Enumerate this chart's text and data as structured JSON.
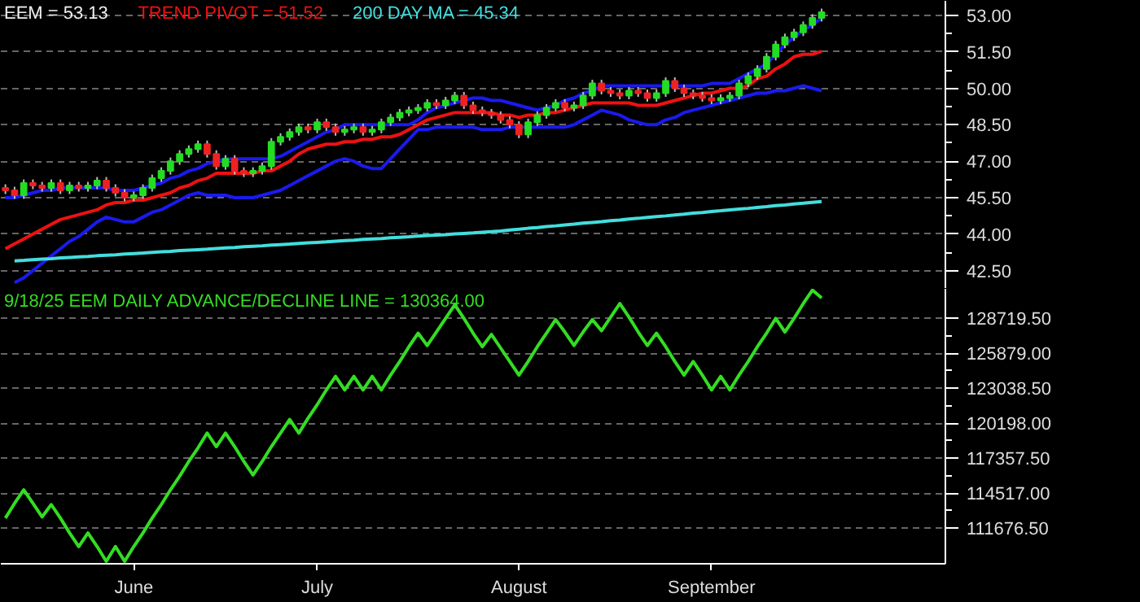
{
  "chart_data": [
    {
      "type": "candlestick",
      "title": "EEM = 53.13",
      "ohlc": [
        [
          45.9,
          46.05,
          45.65,
          45.8
        ],
        [
          45.8,
          45.95,
          45.45,
          45.6
        ],
        [
          45.6,
          46.25,
          45.45,
          46.1
        ],
        [
          46.1,
          46.25,
          45.85,
          46.0
        ],
        [
          46.0,
          46.15,
          45.75,
          45.9
        ],
        [
          45.9,
          46.25,
          45.75,
          46.1
        ],
        [
          46.1,
          46.25,
          45.65,
          45.8
        ],
        [
          45.8,
          46.15,
          45.65,
          46.0
        ],
        [
          46.0,
          46.15,
          45.75,
          45.9
        ],
        [
          45.9,
          46.15,
          45.75,
          46.0
        ],
        [
          46.0,
          46.35,
          45.85,
          46.2
        ],
        [
          46.2,
          46.35,
          45.75,
          45.9
        ],
        [
          45.9,
          46.05,
          45.55,
          45.7
        ],
        [
          45.7,
          45.85,
          45.35,
          45.5
        ],
        [
          45.5,
          45.75,
          45.35,
          45.6
        ],
        [
          45.6,
          46.05,
          45.45,
          45.9
        ],
        [
          45.9,
          46.45,
          45.75,
          46.3
        ],
        [
          46.3,
          46.75,
          46.15,
          46.6
        ],
        [
          46.6,
          47.15,
          46.45,
          47.0
        ],
        [
          47.0,
          47.45,
          46.85,
          47.3
        ],
        [
          47.3,
          47.65,
          47.15,
          47.5
        ],
        [
          47.5,
          47.85,
          47.35,
          47.7
        ],
        [
          47.7,
          47.85,
          47.15,
          47.3
        ],
        [
          47.3,
          47.45,
          46.65,
          46.8
        ],
        [
          46.8,
          47.25,
          46.65,
          47.1
        ],
        [
          47.1,
          47.25,
          46.45,
          46.6
        ],
        [
          46.6,
          46.75,
          46.35,
          46.5
        ],
        [
          46.5,
          46.75,
          46.35,
          46.6
        ],
        [
          46.6,
          46.95,
          46.45,
          46.8
        ],
        [
          46.8,
          47.95,
          46.65,
          47.8
        ],
        [
          47.8,
          48.15,
          47.65,
          48.0
        ],
        [
          48.0,
          48.35,
          47.85,
          48.2
        ],
        [
          48.2,
          48.55,
          48.05,
          48.4
        ],
        [
          48.4,
          48.55,
          48.15,
          48.3
        ],
        [
          48.3,
          48.75,
          48.15,
          48.6
        ],
        [
          48.6,
          48.75,
          48.25,
          48.4
        ],
        [
          48.4,
          48.55,
          48.05,
          48.2
        ],
        [
          48.2,
          48.45,
          48.05,
          48.3
        ],
        [
          48.3,
          48.55,
          48.15,
          48.4
        ],
        [
          48.4,
          48.55,
          48.05,
          48.2
        ],
        [
          48.2,
          48.45,
          48.05,
          48.3
        ],
        [
          48.3,
          48.75,
          48.15,
          48.6
        ],
        [
          48.6,
          48.95,
          48.45,
          48.8
        ],
        [
          48.8,
          49.15,
          48.65,
          49.0
        ],
        [
          49.0,
          49.25,
          48.85,
          49.1
        ],
        [
          49.1,
          49.35,
          48.95,
          49.2
        ],
        [
          49.2,
          49.55,
          49.05,
          49.4
        ],
        [
          49.4,
          49.55,
          49.15,
          49.3
        ],
        [
          49.3,
          49.65,
          49.15,
          49.5
        ],
        [
          49.5,
          49.85,
          49.35,
          49.7
        ],
        [
          49.7,
          49.85,
          49.15,
          49.3
        ],
        [
          49.3,
          49.45,
          48.95,
          49.1
        ],
        [
          49.1,
          49.25,
          48.85,
          49.0
        ],
        [
          49.0,
          49.15,
          48.75,
          48.9
        ],
        [
          48.9,
          49.05,
          48.55,
          48.7
        ],
        [
          48.7,
          48.85,
          48.35,
          48.5
        ],
        [
          48.5,
          48.65,
          47.95,
          48.1
        ],
        [
          48.1,
          48.75,
          47.95,
          48.6
        ],
        [
          48.6,
          49.05,
          48.45,
          48.9
        ],
        [
          48.9,
          49.35,
          48.75,
          49.2
        ],
        [
          49.2,
          49.55,
          49.05,
          49.4
        ],
        [
          49.4,
          49.55,
          49.05,
          49.2
        ],
        [
          49.2,
          49.45,
          49.05,
          49.3
        ],
        [
          49.3,
          49.85,
          49.15,
          49.7
        ],
        [
          49.7,
          50.35,
          49.55,
          50.2
        ],
        [
          50.2,
          50.35,
          49.75,
          49.9
        ],
        [
          49.9,
          50.05,
          49.65,
          49.8
        ],
        [
          49.8,
          49.95,
          49.55,
          49.7
        ],
        [
          49.7,
          50.05,
          49.55,
          49.9
        ],
        [
          49.9,
          50.05,
          49.65,
          49.8
        ],
        [
          49.8,
          49.95,
          49.45,
          49.6
        ],
        [
          49.6,
          49.95,
          49.45,
          49.8
        ],
        [
          49.8,
          50.45,
          49.65,
          50.3
        ],
        [
          50.3,
          50.45,
          49.85,
          50.0
        ],
        [
          50.0,
          50.15,
          49.65,
          49.8
        ],
        [
          49.8,
          49.95,
          49.55,
          49.7
        ],
        [
          49.7,
          49.85,
          49.45,
          49.6
        ],
        [
          49.6,
          49.75,
          49.35,
          49.5
        ],
        [
          49.5,
          49.75,
          49.35,
          49.6
        ],
        [
          49.6,
          49.85,
          49.45,
          49.7
        ],
        [
          49.7,
          50.35,
          49.55,
          50.2
        ],
        [
          50.2,
          50.65,
          50.05,
          50.5
        ],
        [
          50.5,
          50.95,
          50.35,
          50.8
        ],
        [
          50.8,
          51.45,
          50.65,
          51.3
        ],
        [
          51.3,
          51.95,
          51.15,
          51.8
        ],
        [
          51.8,
          52.25,
          51.65,
          52.1
        ],
        [
          52.1,
          52.45,
          51.95,
          52.3
        ],
        [
          52.3,
          52.75,
          52.15,
          52.6
        ],
        [
          52.6,
          53.05,
          52.45,
          52.9
        ],
        [
          52.9,
          53.28,
          52.75,
          53.13
        ],
        null,
        null,
        null,
        null,
        null,
        null,
        null,
        null,
        null,
        null,
        null,
        null,
        null
      ],
      "colors": [
        "#ee2222",
        "#ee2222",
        "#22dd22",
        "#ee2222",
        "#ee2222",
        "#22dd22",
        "#ee2222",
        "#22dd22",
        "#ee2222",
        "#22dd22",
        "#22dd22",
        "#ee2222",
        "#ee2222",
        "#ee2222",
        "#22dd22",
        "#22dd22",
        "#22dd22",
        "#22dd22",
        "#22dd22",
        "#22dd22",
        "#22dd22",
        "#22dd22",
        "#ee2222",
        "#ee2222",
        "#22dd22",
        "#ee2222",
        "#ee2222",
        "#22dd22",
        "#22dd22",
        "#22dd22",
        "#22dd22",
        "#22dd22",
        "#22dd22",
        "#ee2222",
        "#22dd22",
        "#ee2222",
        "#ee2222",
        "#22dd22",
        "#22dd22",
        "#ee2222",
        "#22dd22",
        "#22dd22",
        "#22dd22",
        "#22dd22",
        "#22dd22",
        "#22dd22",
        "#22dd22",
        "#ee2222",
        "#22dd22",
        "#22dd22",
        "#ee2222",
        "#ee2222",
        "#ee2222",
        "#ee2222",
        "#ee2222",
        "#ee2222",
        "#ee2222",
        "#22dd22",
        "#22dd22",
        "#22dd22",
        "#22dd22",
        "#ee2222",
        "#22dd22",
        "#22dd22",
        "#22dd22",
        "#ee2222",
        "#ee2222",
        "#ee2222",
        "#22dd22",
        "#ee2222",
        "#ee2222",
        "#22dd22",
        "#22dd22",
        "#ee2222",
        "#ee2222",
        "#ee2222",
        "#ee2222",
        "#ee2222",
        "#22dd22",
        "#22dd22",
        "#22dd22",
        "#22dd22",
        "#22dd22",
        "#22dd22",
        "#22dd22",
        "#22dd22",
        "#22dd22",
        "#22dd22",
        "#22dd22",
        "#22dd22",
        null,
        null,
        null,
        null,
        null,
        null,
        null,
        null,
        null,
        null,
        null,
        null,
        null
      ],
      "series": [
        {
          "type": "line",
          "name": "TREND PIVOT = 51.52",
          "color": "#ee1111",
          "values": [
            43.4,
            43.6,
            43.8,
            44.0,
            44.2,
            44.4,
            44.6,
            44.7,
            44.8,
            44.9,
            45.0,
            45.2,
            45.3,
            45.3,
            45.4,
            45.4,
            45.5,
            45.6,
            45.7,
            45.9,
            46.0,
            46.2,
            46.3,
            46.5,
            46.5,
            46.5,
            46.5,
            46.5,
            46.6,
            46.6,
            46.8,
            47.0,
            47.3,
            47.5,
            47.6,
            47.7,
            47.7,
            47.8,
            47.8,
            47.9,
            47.9,
            48.0,
            48.0,
            48.1,
            48.3,
            48.5,
            48.7,
            48.8,
            48.9,
            49.0,
            49.0,
            49.0,
            49.0,
            49.0,
            48.9,
            48.9,
            48.8,
            48.9,
            48.9,
            49.0,
            49.0,
            49.1,
            49.2,
            49.3,
            49.4,
            49.4,
            49.4,
            49.4,
            49.4,
            49.3,
            49.3,
            49.3,
            49.4,
            49.5,
            49.6,
            49.7,
            49.8,
            49.8,
            49.9,
            50.0,
            50.0,
            50.1,
            50.4,
            50.5,
            50.8,
            51.0,
            51.3,
            51.4,
            51.4,
            51.52,
            null,
            null,
            null,
            null,
            null,
            null,
            null,
            null,
            null,
            null,
            null,
            null,
            null
          ]
        },
        {
          "type": "line",
          "color": "#1a1aee",
          "values": [
            45.5,
            45.5,
            45.6,
            45.7,
            45.8,
            45.8,
            45.9,
            45.9,
            45.9,
            45.9,
            45.9,
            45.9,
            45.8,
            45.8,
            45.8,
            45.9,
            46.0,
            46.1,
            46.3,
            46.4,
            46.6,
            46.7,
            46.9,
            47.0,
            47.1,
            47.1,
            47.1,
            47.1,
            47.1,
            47.1,
            47.2,
            47.4,
            47.6,
            47.8,
            48.0,
            48.2,
            48.3,
            48.5,
            48.5,
            48.5,
            48.5,
            48.5,
            48.5,
            48.5,
            48.5,
            48.7,
            49.0,
            49.2,
            49.3,
            49.4,
            49.5,
            49.6,
            49.6,
            49.5,
            49.5,
            49.4,
            49.3,
            49.2,
            49.1,
            49.2,
            49.3,
            49.5,
            49.6,
            49.8,
            49.9,
            50.1,
            50.1,
            50.1,
            50.1,
            50.1,
            50.1,
            50.1,
            50.1,
            50.1,
            50.1,
            50.1,
            50.1,
            50.2,
            50.2,
            50.2,
            50.4,
            50.6,
            50.8,
            51.0,
            51.4,
            51.8,
            52.1,
            52.4,
            52.6,
            52.9,
            null,
            null,
            null,
            null,
            null,
            null,
            null,
            null,
            null,
            null,
            null,
            null,
            null
          ]
        },
        {
          "type": "line",
          "color": "#1a1aee",
          "values": [
            null,
            42.0,
            42.2,
            42.5,
            42.8,
            43.1,
            43.4,
            43.7,
            43.9,
            44.2,
            44.5,
            44.7,
            44.6,
            44.5,
            44.5,
            44.7,
            44.9,
            45.0,
            45.2,
            45.4,
            45.6,
            45.7,
            45.6,
            45.6,
            45.6,
            45.5,
            45.5,
            45.5,
            45.6,
            45.7,
            45.8,
            46.0,
            46.2,
            46.4,
            46.6,
            46.8,
            47.0,
            47.1,
            47.0,
            46.8,
            46.7,
            46.7,
            47.1,
            47.5,
            47.9,
            48.3,
            48.3,
            48.4,
            48.4,
            48.4,
            48.4,
            48.4,
            48.3,
            48.3,
            48.3,
            48.4,
            48.4,
            48.4,
            48.4,
            48.4,
            48.4,
            48.4,
            48.5,
            48.7,
            48.9,
            49.1,
            49.0,
            48.9,
            48.7,
            48.6,
            48.5,
            48.5,
            48.7,
            48.8,
            49.0,
            49.1,
            49.2,
            49.3,
            49.4,
            49.5,
            49.6,
            49.7,
            49.8,
            49.8,
            49.9,
            49.9,
            50.0,
            50.1,
            50.0,
            49.9,
            null,
            null,
            null,
            null,
            null,
            null,
            null,
            null,
            null,
            null,
            null,
            null,
            null
          ]
        },
        {
          "type": "line",
          "name": "200 DAY MA = 45.34",
          "color": "#44dddd",
          "values": [
            null,
            42.9,
            42.92,
            42.95,
            42.97,
            42.99,
            43.02,
            43.04,
            43.06,
            43.08,
            43.11,
            43.13,
            43.15,
            43.18,
            43.2,
            43.22,
            43.25,
            43.27,
            43.29,
            43.32,
            43.34,
            43.36,
            43.38,
            43.41,
            43.43,
            43.45,
            43.48,
            43.5,
            43.52,
            43.55,
            43.57,
            43.59,
            43.62,
            43.64,
            43.66,
            43.68,
            43.71,
            43.73,
            43.75,
            43.78,
            43.8,
            43.82,
            43.85,
            43.87,
            43.89,
            43.92,
            43.94,
            43.96,
            43.98,
            44.01,
            44.03,
            44.05,
            44.08,
            44.1,
            44.13,
            44.17,
            44.2,
            44.24,
            44.27,
            44.31,
            44.34,
            44.38,
            44.41,
            44.45,
            44.48,
            44.51,
            44.55,
            44.58,
            44.62,
            44.65,
            44.69,
            44.72,
            44.75,
            44.79,
            44.82,
            44.86,
            44.89,
            44.93,
            44.96,
            45.0,
            45.03,
            45.06,
            45.1,
            45.13,
            45.17,
            45.2,
            45.24,
            45.27,
            45.31,
            45.34,
            null,
            null,
            null,
            null,
            null,
            null,
            null,
            null,
            null,
            null,
            null,
            null,
            null
          ]
        }
      ],
      "ylim": [
        41.75,
        53.6
      ],
      "yticks": [
        {
          "value": 42.5,
          "label": "42.50"
        },
        {
          "value": 44,
          "label": "44.00"
        },
        {
          "value": 45.5,
          "label": "45.50"
        },
        {
          "value": 47,
          "label": "47.00"
        },
        {
          "value": 48.5,
          "label": "48.50"
        },
        {
          "value": 50,
          "label": "50.00"
        },
        {
          "value": 51.5,
          "label": "51.50"
        },
        {
          "value": 53,
          "label": "53.00"
        }
      ],
      "grid": "y",
      "legend": "top left"
    },
    {
      "type": "line",
      "categories": [
        null,
        null,
        null,
        null,
        null,
        null,
        null,
        null,
        null,
        null,
        null,
        null,
        null,
        null,
        "June",
        null,
        null,
        null,
        null,
        null,
        null,
        null,
        null,
        null,
        null,
        null,
        null,
        null,
        null,
        null,
        null,
        null,
        null,
        null,
        "July",
        null,
        null,
        null,
        null,
        null,
        null,
        null,
        null,
        null,
        null,
        null,
        null,
        null,
        null,
        null,
        null,
        null,
        null,
        null,
        null,
        null,
        "August",
        null,
        null,
        null,
        null,
        null,
        null,
        null,
        null,
        null,
        null,
        null,
        null,
        null,
        null,
        null,
        null,
        null,
        null,
        null,
        null,
        "September",
        null,
        null,
        null,
        null,
        null,
        null,
        null,
        null,
        null,
        null,
        null,
        null,
        null,
        null,
        null,
        null,
        null,
        null,
        null,
        null,
        null,
        null,
        null,
        null,
        null
      ],
      "series": [
        {
          "name": "9/18/25  EEM DAILY ADVANCE/DECLINE LINE = 130364.00",
          "color": "#33dd22",
          "values": [
            112500,
            113700,
            114800,
            113700,
            112600,
            113600,
            112500,
            111300,
            110200,
            111300,
            110200,
            109000,
            110200,
            109000,
            110200,
            111300,
            112500,
            113600,
            114800,
            115900,
            117100,
            118200,
            119400,
            118300,
            119400,
            118300,
            117100,
            116000,
            117100,
            118300,
            119400,
            120500,
            119400,
            120600,
            121700,
            122900,
            124000,
            122900,
            124000,
            122900,
            124000,
            122900,
            124100,
            125200,
            126400,
            127500,
            126500,
            127600,
            128700,
            129800,
            128700,
            127500,
            126400,
            127400,
            126300,
            125200,
            124100,
            125200,
            126400,
            127500,
            128600,
            127600,
            126500,
            127600,
            128600,
            127700,
            128800,
            129900,
            128800,
            127600,
            126500,
            127500,
            126400,
            125200,
            124100,
            125200,
            124100,
            122900,
            124000,
            122900,
            124100,
            125200,
            126400,
            127500,
            128700,
            127600,
            128700,
            129900,
            131000,
            130364,
            null,
            null,
            null,
            null,
            null,
            null,
            null,
            null,
            null,
            null,
            null,
            null,
            null
          ]
        }
      ],
      "ylim": [
        108800,
        131100
      ],
      "yticks": [
        {
          "value": 111676.5,
          "label": "111676.50"
        },
        {
          "value": 114517,
          "label": "114517.00"
        },
        {
          "value": 117357.5,
          "label": "117357.50"
        },
        {
          "value": 120198,
          "label": "120198.00"
        },
        {
          "value": 123038.5,
          "label": "123038.50"
        },
        {
          "value": 125879,
          "label": "125879.00"
        },
        {
          "value": 128719.5,
          "label": "128719.50"
        }
      ],
      "grid": "y",
      "legend": "top left"
    }
  ]
}
